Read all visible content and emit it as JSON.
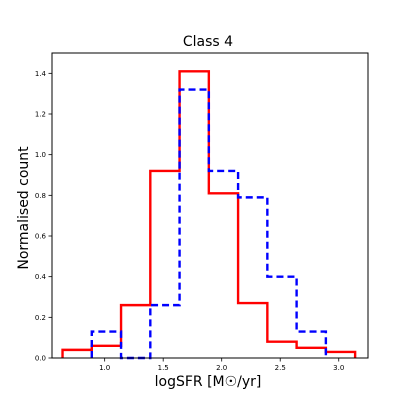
{
  "chart_data": {
    "type": "histogram-step",
    "title": "Class 4",
    "xlabel": "logSFR [M☉/yr]",
    "ylabel": "Normalised count",
    "xlim": [
      0.55,
      3.25
    ],
    "ylim": [
      0.0,
      1.5
    ],
    "xticks": [
      "1.0",
      "1.5",
      "2.0",
      "2.5",
      "3.0"
    ],
    "yticks": [
      "0.0",
      "0.2",
      "0.4",
      "0.6",
      "0.8",
      "1.0",
      "1.2",
      "1.4"
    ],
    "grid": false,
    "legend": "none",
    "series": [
      {
        "color": "#ff0000",
        "style": "solid",
        "edges": [
          0.64,
          0.89,
          1.14,
          1.39,
          1.64,
          1.89,
          2.14,
          2.39,
          2.64,
          2.89,
          3.14
        ],
        "values": [
          0.04,
          0.06,
          0.26,
          0.92,
          1.41,
          0.81,
          0.27,
          0.08,
          0.05,
          0.03
        ]
      },
      {
        "color": "#0000ff",
        "style": "dashed",
        "edges": [
          0.89,
          1.14,
          1.39,
          1.64,
          1.89,
          2.14,
          2.39,
          2.64,
          2.89
        ],
        "values": [
          0.13,
          0.0,
          0.26,
          1.32,
          0.92,
          0.79,
          0.4,
          0.13
        ]
      }
    ]
  }
}
